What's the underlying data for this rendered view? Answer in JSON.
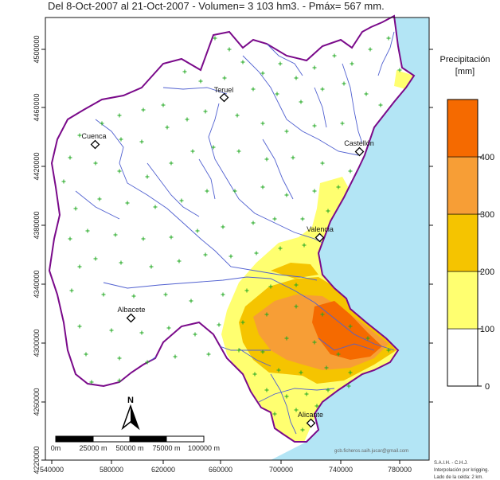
{
  "title": "Del 8-Oct-2007 al 21-Oct-2007 - Volumen= 3 103 hm3. - Pmáx= 567 mm.",
  "legend": {
    "title": "Precipitación",
    "unit": "[mm]",
    "labels": [
      "0",
      "100",
      "200",
      "300",
      "400"
    ],
    "colors": [
      "#ffffff",
      "#ffff70",
      "#f5c400",
      "#f79e36",
      "#f56a00"
    ]
  },
  "axes": {
    "x_ticks": [
      "540000",
      "580000",
      "620000",
      "660000",
      "700000",
      "740000",
      "780000"
    ],
    "y_ticks": [
      "4500000",
      "4460000",
      "4420000",
      "4380000",
      "4340000",
      "4300000",
      "4260000",
      "4220000"
    ]
  },
  "cities": [
    {
      "name": "Teruel"
    },
    {
      "name": "Cuenca"
    },
    {
      "name": "Castellón"
    },
    {
      "name": "Valencia"
    },
    {
      "name": "Albacete"
    },
    {
      "name": "Alicante"
    }
  ],
  "scale_bar": {
    "labels": [
      "0m",
      "25000 m",
      "50000 m",
      "75000 m",
      "100000 m"
    ]
  },
  "email": "gcb.ficheros.saih.jucar@gmail.com",
  "footer": [
    "S.A.I.H. - C.H.J.",
    "Interpolación por krigging.",
    "Lado de la celda: 2 km."
  ],
  "colors": {
    "sea": "#b3e5f5",
    "boundary": "#7a0a8a",
    "rivers": "#5060d0",
    "stations": "#22a822"
  }
}
